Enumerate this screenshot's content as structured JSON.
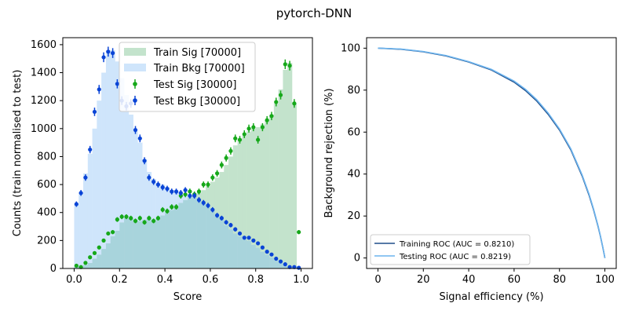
{
  "title": "pytorch-DNN",
  "colors": {
    "train_sig": "#c3e3cc",
    "train_bkg": "#cfe5fb",
    "overlap": "#a8d4dc",
    "test_sig": "#16a81a",
    "test_bkg": "#0a44d6",
    "roc_train": "#1f4e8a",
    "roc_test": "#6cb4ee"
  },
  "chart_data": [
    {
      "type": "histogram",
      "xlabel": "Score",
      "ylabel": "Counts (train normalised to test)",
      "xlim": [
        -0.05,
        1.05
      ],
      "ylim": [
        0,
        1650
      ],
      "xticks": [
        "0.0",
        "0.2",
        "0.4",
        "0.6",
        "0.8",
        "1.0"
      ],
      "yticks": [
        "0",
        "200",
        "400",
        "600",
        "800",
        "1000",
        "1200",
        "1400",
        "1600"
      ],
      "bin_edges_start": 0.0,
      "bin_width": 0.02,
      "legend": {
        "train_sig": "Train Sig [70000]",
        "train_bkg": "Train Bkg [70000]",
        "test_sig": "Test Sig [30000]",
        "test_bkg": "Test Bkg [30000]"
      },
      "series": [
        {
          "name": "Train Sig [70000]",
          "kind": "filled-step",
          "values": [
            20,
            15,
            25,
            40,
            70,
            100,
            140,
            180,
            230,
            270,
            330,
            360,
            360,
            350,
            340,
            350,
            360,
            340,
            360,
            380,
            410,
            420,
            440,
            470,
            490,
            510,
            530,
            540,
            560,
            590,
            620,
            650,
            690,
            740,
            800,
            880,
            930,
            950,
            980,
            1000,
            1010,
            1030,
            1060,
            1100,
            1180,
            1280,
            1420,
            1470,
            1180,
            0
          ]
        },
        {
          "name": "Train Bkg [70000]",
          "kind": "filled-step",
          "values": [
            460,
            540,
            680,
            820,
            1000,
            1200,
            1400,
            1560,
            1560,
            1480,
            1360,
            1240,
            1100,
            980,
            900,
            780,
            690,
            640,
            610,
            600,
            580,
            560,
            550,
            540,
            530,
            520,
            510,
            500,
            470,
            440,
            410,
            380,
            350,
            310,
            280,
            250,
            230,
            210,
            200,
            170,
            150,
            120,
            100,
            80,
            60,
            40,
            20,
            10,
            5,
            0
          ]
        },
        {
          "name": "Test Sig [30000]",
          "kind": "errorbar",
          "values": [
            20,
            10,
            40,
            80,
            110,
            150,
            200,
            250,
            260,
            350,
            370,
            370,
            360,
            340,
            360,
            330,
            360,
            340,
            360,
            420,
            410,
            440,
            440,
            520,
            530,
            550,
            530,
            550,
            600,
            600,
            650,
            680,
            740,
            790,
            840,
            930,
            920,
            960,
            1000,
            1010,
            920,
            1010,
            1060,
            1090,
            1190,
            1240,
            1460,
            1450,
            1180,
            260
          ]
        },
        {
          "name": "Test Bkg [30000]",
          "kind": "errorbar",
          "values": [
            460,
            540,
            650,
            850,
            1120,
            1280,
            1510,
            1550,
            1540,
            1320,
            1200,
            1160,
            1180,
            990,
            930,
            770,
            650,
            620,
            600,
            580,
            570,
            550,
            550,
            540,
            560,
            520,
            520,
            490,
            470,
            450,
            420,
            380,
            360,
            330,
            310,
            280,
            250,
            220,
            220,
            200,
            180,
            150,
            120,
            100,
            70,
            50,
            30,
            10,
            10,
            5
          ]
        }
      ]
    },
    {
      "type": "line",
      "xlabel": "Signal efficiency (%)",
      "ylabel": "Background rejection (%)",
      "xlim": [
        -5,
        105
      ],
      "ylim": [
        -5,
        105
      ],
      "xticks": [
        "0",
        "20",
        "40",
        "60",
        "80",
        "100"
      ],
      "yticks": [
        "0",
        "20",
        "40",
        "60",
        "80",
        "100"
      ],
      "series": [
        {
          "name": "Training ROC (AUC = 0.8210)",
          "x": [
            0,
            10,
            20,
            30,
            40,
            50,
            60,
            65,
            70,
            75,
            80,
            85,
            90,
            93,
            95,
            97,
            98,
            99,
            99.5,
            100
          ],
          "y": [
            100,
            99.5,
            98.3,
            96.3,
            93.4,
            89.6,
            83.8,
            79.8,
            74.8,
            68.5,
            61.0,
            51.5,
            39.0,
            30.0,
            23.0,
            15.0,
            10.5,
            5.5,
            2.8,
            0
          ]
        },
        {
          "name": "Testing ROC (AUC = 0.8219)",
          "x": [
            0,
            10,
            20,
            30,
            40,
            50,
            60,
            65,
            70,
            75,
            80,
            85,
            90,
            93,
            95,
            97,
            98,
            99,
            99.5,
            100
          ],
          "y": [
            100,
            99.6,
            98.4,
            96.5,
            93.6,
            89.9,
            84.3,
            80.4,
            75.4,
            69.1,
            61.5,
            52.0,
            39.5,
            30.5,
            23.4,
            15.3,
            10.7,
            5.6,
            2.9,
            0
          ]
        }
      ]
    }
  ]
}
